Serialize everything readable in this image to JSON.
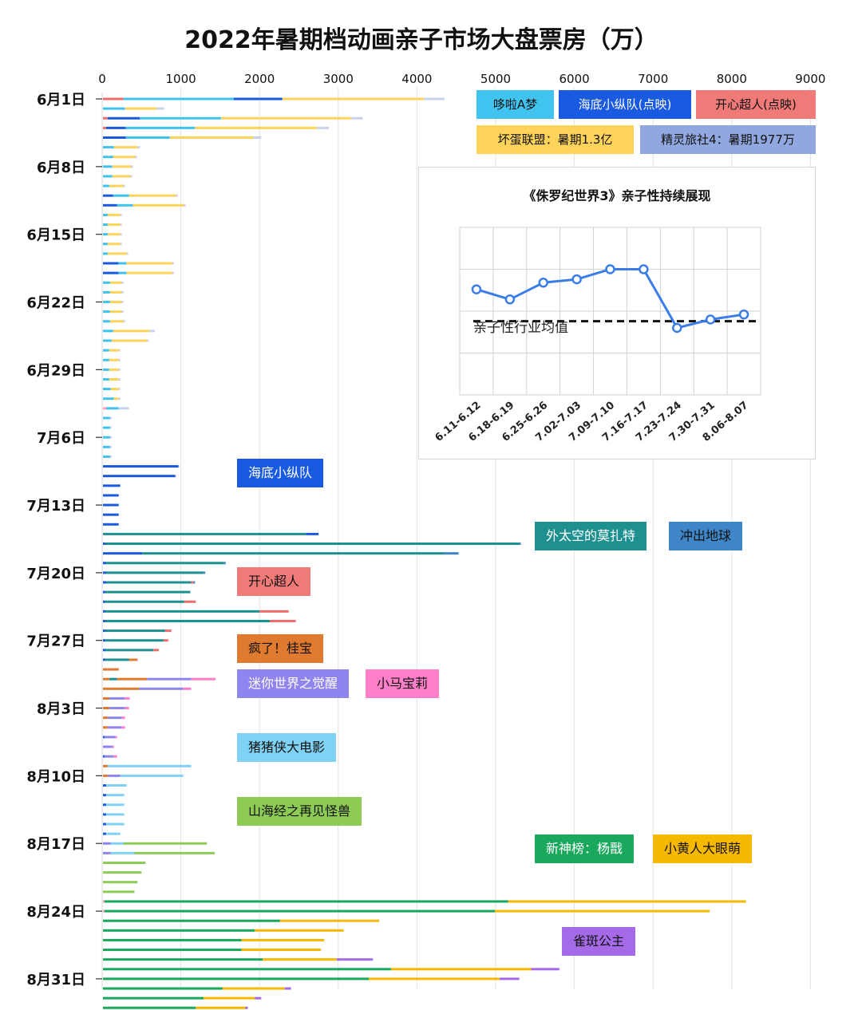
{
  "chart_data": {
    "type": "bar",
    "title": "2022年暑期档动画亲子市场大盘票房（万）",
    "xlim": [
      0,
      9000
    ],
    "xticks": [
      "0",
      "1000",
      "2000",
      "3000",
      "4000",
      "5000",
      "6000",
      "7000",
      "8000",
      "9000"
    ],
    "ylabel": "",
    "date_labels": [
      "6月1日",
      "6月8日",
      "6月15日",
      "6月22日",
      "6月29日",
      "7月6日",
      "7月13日",
      "7月20日",
      "7月27日",
      "8月3日",
      "8月10日",
      "8月17日",
      "8月24日",
      "8月31日"
    ],
    "series_colors": {
      "pink_legend": "#ffa0b4",
      "other_small": "#c8d2ea",
      "doraemon": "#3fc3ee",
      "dino": "#1a5ae0",
      "happy": "#f06c6c",
      "badguys": "#fdd35a",
      "monster": "#7b8fd6",
      "minions": "#f7b800",
      "mozart": "#1f9090",
      "rush": "#3f86c8",
      "gui": "#e07a2e",
      "mini": "#8e86ee",
      "pony": "#ff80c8",
      "pigman": "#7fd1f5",
      "mountain": "#8dcb55",
      "yangjian": "#1aa95c",
      "bird": "#a56ae8"
    },
    "legend": [
      {
        "name": "哆啦A梦",
        "color": "#40c4ef",
        "text_color": "#111111"
      },
      {
        "name": "海底小纵队(点映)",
        "color": "#1a5ae0",
        "text_color": "#ffffff"
      },
      {
        "name": "开心超人(点映)",
        "color": "#f07a78",
        "text_color": "#111111"
      },
      {
        "name": "坏蛋联盟：暑期1.3亿",
        "color": "#fdd35a",
        "text_color": "#111111"
      },
      {
        "name": "精灵旅社4：暑期1977万",
        "color": "#90a8df",
        "text_color": "#111111"
      }
    ],
    "tags": [
      {
        "name": "海底小纵队",
        "color": "#1a5ae0",
        "text_color": "#ffffff"
      },
      {
        "name": "外太空的莫扎特",
        "color": "#1f9090",
        "text_color": "#ffffff"
      },
      {
        "name": "冲出地球",
        "color": "#3f86c8",
        "text_color": "#111111"
      },
      {
        "name": "开心超人",
        "color": "#f07a78",
        "text_color": "#111111"
      },
      {
        "name": "疯了！桂宝",
        "color": "#e07a2e",
        "text_color": "#111111"
      },
      {
        "name": "迷你世界之觉醒",
        "color": "#8e86ee",
        "text_color": "#ffffff"
      },
      {
        "name": "小马宝莉",
        "color": "#ff80c8",
        "text_color": "#111111"
      },
      {
        "name": "猪猪侠大电影",
        "color": "#80d2f5",
        "text_color": "#111111"
      },
      {
        "name": "山海经之再见怪兽",
        "color": "#8dcb55",
        "text_color": "#111111"
      },
      {
        "name": "新神榜：杨戬",
        "color": "#1aa95c",
        "text_color": "#ffffff"
      },
      {
        "name": "小黄人大眼萌",
        "color": "#f7b800",
        "text_color": "#111111"
      },
      {
        "name": "雀斑公主",
        "color": "#a56ae8",
        "text_color": "#111111"
      }
    ],
    "days": [
      [
        [
          "happy",
          260
        ],
        [
          "doraemon",
          1400
        ],
        [
          "dino",
          620
        ],
        [
          "badguys",
          1800
        ],
        [
          "other_small",
          260
        ]
      ],
      [
        [
          "doraemon",
          280
        ],
        [
          "badguys",
          400
        ],
        [
          "other_small",
          100
        ]
      ],
      [
        [
          "happy",
          60
        ],
        [
          "dino",
          410
        ],
        [
          "doraemon",
          1030
        ],
        [
          "badguys",
          1650
        ],
        [
          "other_small",
          150
        ]
      ],
      [
        [
          "happy",
          40
        ],
        [
          "dino",
          250
        ],
        [
          "doraemon",
          880
        ],
        [
          "badguys",
          1550
        ],
        [
          "other_small",
          150
        ]
      ],
      [
        [
          "dino",
          290
        ],
        [
          "doraemon",
          560
        ],
        [
          "badguys",
          1060
        ],
        [
          "other_small",
          100
        ]
      ],
      [
        [
          "doraemon",
          140
        ],
        [
          "badguys",
          300
        ],
        [
          "other_small",
          30
        ]
      ],
      [
        [
          "doraemon",
          130
        ],
        [
          "badguys",
          280
        ],
        [
          "other_small",
          20
        ]
      ],
      [
        [
          "doraemon",
          120
        ],
        [
          "badguys",
          240
        ],
        [
          "other_small",
          20
        ]
      ],
      [
        [
          "doraemon",
          120
        ],
        [
          "badguys",
          230
        ],
        [
          "other_small",
          20
        ]
      ],
      [
        [
          "doraemon",
          80
        ],
        [
          "badguys",
          180
        ],
        [
          "other_small",
          20
        ]
      ],
      [
        [
          "dino",
          130
        ],
        [
          "doraemon",
          200
        ],
        [
          "badguys",
          600
        ],
        [
          "other_small",
          20
        ]
      ],
      [
        [
          "dino",
          180
        ],
        [
          "doraemon",
          200
        ],
        [
          "badguys",
          650
        ],
        [
          "other_small",
          20
        ]
      ],
      [
        [
          "doraemon",
          60
        ],
        [
          "badguys",
          160
        ],
        [
          "other_small",
          20
        ]
      ],
      [
        [
          "doraemon",
          60
        ],
        [
          "badguys",
          160
        ],
        [
          "other_small",
          20
        ]
      ],
      [
        [
          "doraemon",
          60
        ],
        [
          "badguys",
          160
        ],
        [
          "other_small",
          20
        ]
      ],
      [
        [
          "doraemon",
          60
        ],
        [
          "badguys",
          160
        ],
        [
          "other_small",
          20
        ]
      ],
      [
        [
          "doraemon",
          60
        ],
        [
          "badguys",
          240
        ],
        [
          "other_small",
          20
        ]
      ],
      [
        [
          "dino",
          200
        ],
        [
          "doraemon",
          100
        ],
        [
          "badguys",
          580
        ],
        [
          "other_small",
          20
        ]
      ],
      [
        [
          "dino",
          200
        ],
        [
          "doraemon",
          100
        ],
        [
          "badguys",
          580
        ],
        [
          "other_small",
          20
        ]
      ],
      [
        [
          "doraemon",
          90
        ],
        [
          "badguys",
          150
        ],
        [
          "other_small",
          20
        ]
      ],
      [
        [
          "doraemon",
          90
        ],
        [
          "badguys",
          150
        ],
        [
          "other_small",
          20
        ]
      ],
      [
        [
          "doraemon",
          90
        ],
        [
          "badguys",
          150
        ],
        [
          "other_small",
          20
        ]
      ],
      [
        [
          "doraemon",
          90
        ],
        [
          "badguys",
          150
        ],
        [
          "other_small",
          20
        ]
      ],
      [
        [
          "doraemon",
          90
        ],
        [
          "badguys",
          170
        ],
        [
          "other_small",
          20
        ]
      ],
      [
        [
          "doraemon",
          130
        ],
        [
          "badguys",
          460
        ],
        [
          "other_small",
          70
        ]
      ],
      [
        [
          "doraemon",
          110
        ],
        [
          "badguys",
          450
        ],
        [
          "other_small",
          20
        ]
      ],
      [
        [
          "doraemon",
          80
        ],
        [
          "badguys",
          120
        ],
        [
          "other_small",
          20
        ]
      ],
      [
        [
          "doraemon",
          80
        ],
        [
          "badguys",
          120
        ],
        [
          "other_small",
          20
        ]
      ],
      [
        [
          "doraemon",
          80
        ],
        [
          "badguys",
          120
        ],
        [
          "other_small",
          20
        ]
      ],
      [
        [
          "doraemon",
          80
        ],
        [
          "badguys",
          120
        ],
        [
          "other_small",
          20
        ]
      ],
      [
        [
          "doraemon",
          100
        ],
        [
          "badguys",
          100
        ],
        [
          "other_small",
          20
        ]
      ],
      [
        [
          "doraemon",
          140
        ],
        [
          "badguys",
          60
        ],
        [
          "other_small",
          20
        ]
      ],
      [
        [
          "pink_legend",
          40
        ],
        [
          "doraemon",
          160
        ],
        [
          "other_small",
          130
        ]
      ],
      [
        [
          "doraemon",
          90
        ],
        [
          "other_small",
          20
        ]
      ],
      [
        [
          "doraemon",
          90
        ],
        [
          "other_small",
          20
        ]
      ],
      [
        [
          "doraemon",
          90
        ],
        [
          "other_small",
          20
        ]
      ],
      [
        [
          "doraemon",
          90
        ],
        [
          "other_small",
          20
        ]
      ],
      [
        [
          "doraemon",
          90
        ],
        [
          "other_small",
          20
        ]
      ],
      [
        [
          "dino",
          960
        ],
        [
          "other_small",
          10
        ]
      ],
      [
        [
          "dino",
          920
        ],
        [
          "other_small",
          10
        ]
      ],
      [
        [
          "dino",
          220
        ]
      ],
      [
        [
          "dino",
          200
        ]
      ],
      [
        [
          "dino",
          200
        ]
      ],
      [
        [
          "dino",
          200
        ]
      ],
      [
        [
          "dino",
          200
        ]
      ],
      [
        [
          "mozart",
          2580
        ],
        [
          "dino",
          160
        ]
      ],
      [
        [
          "dino",
          30
        ],
        [
          "mozart",
          5260
        ],
        [
          "rush",
          20
        ]
      ],
      [
        [
          "dino",
          500
        ],
        [
          "mozart",
          3840
        ],
        [
          "rush",
          180
        ]
      ],
      [
        [
          "dino",
          40
        ],
        [
          "mozart",
          1500
        ],
        [
          "rush",
          20
        ]
      ],
      [
        [
          "dino",
          40
        ],
        [
          "mozart",
          1240
        ],
        [
          "rush",
          20
        ]
      ],
      [
        [
          "dino",
          40
        ],
        [
          "mozart",
          1080
        ],
        [
          "happy",
          30
        ],
        [
          "rush",
          20
        ]
      ],
      [
        [
          "dino",
          30
        ],
        [
          "mozart",
          1080
        ],
        [
          "happy",
          0
        ],
        [
          "rush",
          0
        ]
      ],
      [
        [
          "dino",
          30
        ],
        [
          "mozart",
          1000
        ],
        [
          "happy",
          150
        ]
      ],
      [
        [
          "dino",
          30
        ],
        [
          "mozart",
          1960
        ],
        [
          "happy",
          370
        ],
        [
          "rush",
          0
        ]
      ],
      [
        [
          "dino",
          30
        ],
        [
          "mozart",
          2090
        ],
        [
          "happy",
          330
        ]
      ],
      [
        [
          "dino",
          30
        ],
        [
          "mozart",
          760
        ],
        [
          "happy",
          80
        ]
      ],
      [
        [
          "dino",
          30
        ],
        [
          "mozart",
          740
        ],
        [
          "happy",
          60
        ]
      ],
      [
        [
          "dino",
          30
        ],
        [
          "mozart",
          610
        ],
        [
          "happy",
          70
        ]
      ],
      [
        [
          "dino",
          30
        ],
        [
          "mozart",
          300
        ],
        [
          "gui",
          90
        ],
        [
          "happy",
          20
        ]
      ],
      [
        [
          "gui",
          200
        ],
        [
          "happy",
          0
        ]
      ],
      [
        [
          "gui",
          80
        ],
        [
          "mozart",
          100
        ],
        [
          "gui",
          380
        ],
        [
          "mini",
          560
        ],
        [
          "pony",
          310
        ]
      ],
      [
        [
          "gui",
          80
        ],
        [
          "gui",
          380
        ],
        [
          "mini",
          560
        ],
        [
          "pony",
          100
        ]
      ],
      [
        [
          "gui",
          80
        ],
        [
          "mini",
          200
        ],
        [
          "pony",
          60
        ]
      ],
      [
        [
          "gui",
          80
        ],
        [
          "mini",
          200
        ],
        [
          "pony",
          50
        ]
      ],
      [
        [
          "gui",
          60
        ],
        [
          "mini",
          180
        ],
        [
          "pony",
          40
        ]
      ],
      [
        [
          "gui",
          60
        ],
        [
          "mini",
          180
        ],
        [
          "pony",
          40
        ]
      ],
      [
        [
          "dino",
          20
        ],
        [
          "mini",
          140
        ],
        [
          "pony",
          20
        ]
      ],
      [
        [
          "mini",
          120
        ],
        [
          "pony",
          20
        ]
      ],
      [
        [
          "dino",
          20
        ],
        [
          "mini",
          120
        ],
        [
          "pony",
          40
        ]
      ],
      [
        [
          "gui",
          60
        ],
        [
          "pigman",
          1060
        ]
      ],
      [
        [
          "gui",
          60
        ],
        [
          "mini",
          160
        ],
        [
          "pigman",
          800
        ]
      ],
      [
        [
          "dino",
          40
        ],
        [
          "pigman",
          260
        ]
      ],
      [
        [
          "dino",
          40
        ],
        [
          "pigman",
          230
        ]
      ],
      [
        [
          "dino",
          40
        ],
        [
          "pigman",
          230
        ]
      ],
      [
        [
          "dino",
          40
        ],
        [
          "pigman",
          230
        ]
      ],
      [
        [
          "dino",
          40
        ],
        [
          "pigman",
          230
        ]
      ],
      [
        [
          "dino",
          40
        ],
        [
          "pigman",
          180
        ]
      ],
      [
        [
          "mini",
          100
        ],
        [
          "pigman",
          160
        ],
        [
          "mountain",
          1060
        ]
      ],
      [
        [
          "mini",
          100
        ],
        [
          "pigman",
          300
        ],
        [
          "mountain",
          1020
        ]
      ],
      [
        [
          "mountain",
          540
        ]
      ],
      [
        [
          "mountain",
          490
        ]
      ],
      [
        [
          "mountain",
          440
        ]
      ],
      [
        [
          "mountain",
          400
        ]
      ],
      [
        [
          "pink_legend",
          20
        ],
        [
          "yangjian",
          5130
        ],
        [
          "minions",
          3020
        ]
      ],
      [
        [
          "pink_legend",
          20
        ],
        [
          "yangjian",
          4960
        ],
        [
          "minions",
          2730
        ]
      ],
      [
        [
          "yangjian",
          2250
        ],
        [
          "minions",
          1260
        ]
      ],
      [
        [
          "yangjian",
          1930
        ],
        [
          "minions",
          1130
        ]
      ],
      [
        [
          "yangjian",
          1760
        ],
        [
          "minions",
          1050
        ]
      ],
      [
        [
          "yangjian",
          1760
        ],
        [
          "minions",
          1010
        ]
      ],
      [
        [
          "yangjian",
          2030
        ],
        [
          "minions",
          940
        ],
        [
          "bird",
          460
        ]
      ],
      [
        [
          "yangjian",
          3660
        ],
        [
          "minions",
          1780
        ],
        [
          "bird",
          360
        ]
      ],
      [
        [
          "yangjian",
          3380
        ],
        [
          "minions",
          1660
        ],
        [
          "bird",
          250
        ]
      ],
      [
        [
          "yangjian",
          1520
        ],
        [
          "minions",
          790
        ],
        [
          "bird",
          80
        ]
      ],
      [
        [
          "yangjian",
          1280
        ],
        [
          "minions",
          650
        ],
        [
          "bird",
          80
        ]
      ],
      [
        [
          "yangjian",
          1180
        ],
        [
          "minions",
          630
        ],
        [
          "bird",
          30
        ]
      ]
    ],
    "inset": {
      "type": "line",
      "title": "《侏罗纪世界3》亲子性持续展现",
      "categories": [
        "6.11-6.12",
        "6.18-6.19",
        "6.25-6.26",
        "7.02-7.03",
        "7.09-7.10",
        "7.16-7.17",
        "7.23-7.24",
        "7.30-7.31",
        "8.06-8.07"
      ],
      "values": [
        0.63,
        0.57,
        0.67,
        0.69,
        0.75,
        0.75,
        0.4,
        0.45,
        0.48
      ],
      "average": 0.44,
      "average_label": "亲子性行业均值",
      "line_color": "#3b7de8",
      "ylim": [
        0,
        1
      ]
    }
  }
}
